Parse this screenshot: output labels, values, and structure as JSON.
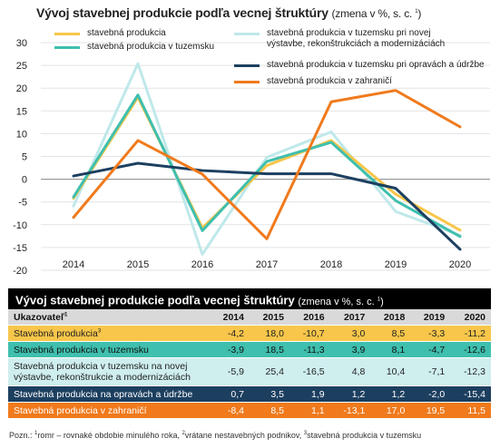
{
  "title": "Vývoj stavebnej produkcie podľa vecnej štruktúry",
  "title_sub": "(zmena v %, s. c. ",
  "title_sup": "1",
  "title_close": ")",
  "chart_data": {
    "type": "line",
    "x": [
      "2014",
      "2015",
      "2016",
      "2017",
      "2018",
      "2019",
      "2020"
    ],
    "ylim": [
      -20,
      30
    ],
    "yticks": [
      "30",
      "25",
      "20",
      "15",
      "10",
      "5",
      "0",
      "-5",
      "-10",
      "-15",
      "-20"
    ],
    "series": [
      {
        "name": "stavebná produkcia",
        "color": "#f7c64a",
        "values": [
          -4.2,
          18.0,
          -10.7,
          3.0,
          8.5,
          -3.3,
          -11.2
        ]
      },
      {
        "name": "stavebná produkcia v tuzemsku",
        "color": "#3fbfae",
        "values": [
          -3.9,
          18.5,
          -11.3,
          3.9,
          8.1,
          -4.7,
          -12.6
        ]
      },
      {
        "name": "stavebná produkcia v tuzemsku pri novej výstavbe, rekonštrukciách a modernizáciách",
        "color": "#bfe8ea",
        "values": [
          -5.9,
          25.4,
          -16.5,
          4.8,
          10.4,
          -7.1,
          -12.3
        ]
      },
      {
        "name": "stavebná produkcia v tuzemsku pri opravách a údržbe",
        "color": "#1c3f60",
        "values": [
          0.7,
          3.5,
          1.9,
          1.2,
          1.2,
          -2.0,
          -15.4
        ]
      },
      {
        "name": "stavebná produkcia v zahraničí",
        "color": "#f07a1c",
        "values": [
          -8.4,
          8.5,
          1.1,
          -13.1,
          17.0,
          19.5,
          11.5
        ]
      }
    ],
    "legend": [
      {
        "line1": "stavebná produkcia",
        "line2": ""
      },
      {
        "line1": "stavebná produkcia v tuzemsku",
        "line2": ""
      },
      {
        "line1": "stavebná produkcia v tuzemsku pri novej",
        "line2": "výstavbe, rekonštrukciách a modernizáciách"
      },
      {
        "line1": "stavebná produkcia v tuzemsku pri opravách a údržbe",
        "line2": ""
      },
      {
        "line1": "stavebná produkcia v zahraničí",
        "line2": ""
      }
    ]
  },
  "table": {
    "title": "Vývoj stavebnej produkcie podľa vecnej štruktúry",
    "title_sub": "(zmena v %, s. c. ",
    "title_sup": "1",
    "title_close": ")",
    "header_label": "Ukazovateľ",
    "header_sup": "1",
    "years": [
      "2014",
      "2015",
      "2016",
      "2017",
      "2018",
      "2019",
      "2020"
    ],
    "rows": [
      {
        "label": "Stavebná produkcia",
        "sup": "3",
        "values": [
          "-4,2",
          "18,0",
          "-10,7",
          "3,0",
          "8,5",
          "-3,3",
          "-11,2"
        ]
      },
      {
        "label": "Stavebná produkcia v tuzemsku",
        "sup": "",
        "values": [
          "-3,9",
          "18,5",
          "-11,3",
          "3,9",
          "8,1",
          "-4,7",
          "-12,6"
        ]
      },
      {
        "label": "Stavebná produkcia v tuzemsku na novej výstavbe, rekonštrukcie a modernizáciách",
        "sup": "",
        "values": [
          "-5,9",
          "25,4",
          "-16,5",
          "4,8",
          "10,4",
          "-7,1",
          "-12,3"
        ]
      },
      {
        "label": "Stavebná produkcia na opravách a údržbe",
        "sup": "",
        "values": [
          "0,7",
          "3,5",
          "1,9",
          "1,2",
          "1,2",
          "-2,0",
          "-15,4"
        ]
      },
      {
        "label": "Stavebná produkcia v zahraničí",
        "sup": "",
        "values": [
          "-8,4",
          "8,5",
          "1,1",
          "-13,1",
          "17,0",
          "19,5",
          "11,5"
        ]
      }
    ]
  },
  "note": {
    "prefix": "Pozn.: ",
    "s1": "1",
    "t1": "romr – rovnaké obdobie minulého roka, ",
    "s2": "2",
    "t2": "vrátane nestavebných podnikov, ",
    "s3": "3",
    "t3": "stavebná produkcia v tuzemsku"
  }
}
